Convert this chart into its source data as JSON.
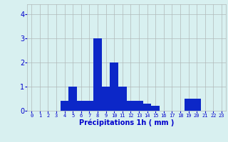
{
  "hours": [
    0,
    1,
    2,
    3,
    4,
    5,
    6,
    7,
    8,
    9,
    10,
    11,
    12,
    13,
    14,
    15,
    16,
    17,
    18,
    19,
    20,
    21,
    22,
    23
  ],
  "values": [
    0,
    0,
    0,
    0,
    0.4,
    1.0,
    0.4,
    0.4,
    3.0,
    1.0,
    2.0,
    1.0,
    0.4,
    0.4,
    0.3,
    0.2,
    0,
    0,
    0,
    0.5,
    0.5,
    0,
    0,
    0
  ],
  "bar_color": "#0c27c8",
  "bg_color": "#d8f0f0",
  "grid_color": "#b0b8b8",
  "xlabel": "Précipitations 1h ( mm )",
  "xlabel_color": "#0000cc",
  "tick_color": "#0000cc",
  "ylim": [
    0,
    4.4
  ],
  "yticks": [
    0,
    1,
    2,
    3,
    4
  ],
  "xlim": [
    -0.5,
    23.5
  ]
}
